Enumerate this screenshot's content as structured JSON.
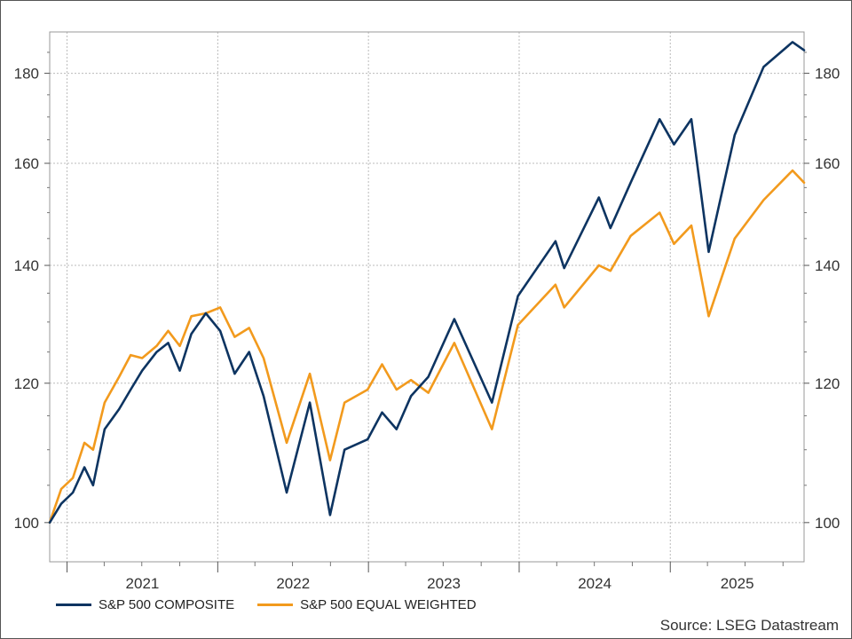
{
  "chart_data": {
    "type": "line",
    "title": "",
    "xlabel": "",
    "ylabel": "",
    "scale": "log",
    "x_range": [
      "2020-11-20",
      "2025-11-21"
    ],
    "ylim": [
      95,
      190
    ],
    "y_ticks": [
      100,
      120,
      140,
      160,
      180
    ],
    "x_tick_labels": [
      "2021",
      "2022",
      "2023",
      "2024",
      "2025"
    ],
    "grid": true,
    "legend_position": "bottom-left",
    "source": "Source: LSEG Datastream",
    "series": [
      {
        "name": "S&P 500 COMPOSITE",
        "color": "#0d3461",
        "points": [
          [
            "2020-11-20",
            100
          ],
          [
            "2020-12-18",
            102.5
          ],
          [
            "2021-01-15",
            104
          ],
          [
            "2021-02-12",
            107.5
          ],
          [
            "2021-03-05",
            105
          ],
          [
            "2021-04-02",
            113
          ],
          [
            "2021-05-07",
            116
          ],
          [
            "2021-06-04",
            119
          ],
          [
            "2021-07-02",
            122
          ],
          [
            "2021-08-06",
            125
          ],
          [
            "2021-09-03",
            126.5
          ],
          [
            "2021-10-01",
            122
          ],
          [
            "2021-10-29",
            128
          ],
          [
            "2021-12-03",
            131.5
          ],
          [
            "2022-01-07",
            128.5
          ],
          [
            "2022-02-11",
            121.5
          ],
          [
            "2022-03-18",
            125
          ],
          [
            "2022-04-22",
            118
          ],
          [
            "2022-06-17",
            104
          ],
          [
            "2022-08-12",
            117
          ],
          [
            "2022-09-30",
            101
          ],
          [
            "2022-11-04",
            110
          ],
          [
            "2022-12-30",
            111.5
          ],
          [
            "2023-02-03",
            115.5
          ],
          [
            "2023-03-10",
            113
          ],
          [
            "2023-04-14",
            118
          ],
          [
            "2023-05-26",
            121
          ],
          [
            "2023-07-28",
            130.5
          ],
          [
            "2023-10-27",
            117
          ],
          [
            "2023-12-29",
            134.5
          ],
          [
            "2024-03-29",
            144.5
          ],
          [
            "2024-04-19",
            139.5
          ],
          [
            "2024-07-12",
            153
          ],
          [
            "2024-08-09",
            147
          ],
          [
            "2024-09-27",
            156
          ],
          [
            "2024-12-06",
            169.5
          ],
          [
            "2025-01-10",
            164
          ],
          [
            "2025-02-21",
            169.5
          ],
          [
            "2025-04-04",
            142.5
          ],
          [
            "2025-06-06",
            166
          ],
          [
            "2025-08-15",
            181.5
          ],
          [
            "2025-10-24",
            187.5
          ],
          [
            "2025-11-21",
            185.5
          ]
        ]
      },
      {
        "name": "S&P 500 EQUAL WEIGHTED",
        "color": "#f29a1d",
        "points": [
          [
            "2020-11-20",
            100
          ],
          [
            "2020-12-18",
            104.5
          ],
          [
            "2021-01-15",
            106
          ],
          [
            "2021-02-12",
            111
          ],
          [
            "2021-03-05",
            110
          ],
          [
            "2021-04-02",
            117
          ],
          [
            "2021-05-07",
            121
          ],
          [
            "2021-06-04",
            124.5
          ],
          [
            "2021-07-02",
            124
          ],
          [
            "2021-08-06",
            126
          ],
          [
            "2021-09-03",
            128.5
          ],
          [
            "2021-10-01",
            126
          ],
          [
            "2021-10-29",
            131
          ],
          [
            "2021-12-03",
            131.5
          ],
          [
            "2022-01-07",
            132.5
          ],
          [
            "2022-02-11",
            127.5
          ],
          [
            "2022-03-18",
            129
          ],
          [
            "2022-04-22",
            124
          ],
          [
            "2022-06-17",
            111
          ],
          [
            "2022-08-12",
            121.5
          ],
          [
            "2022-09-30",
            108.5
          ],
          [
            "2022-11-04",
            117
          ],
          [
            "2022-12-30",
            119
          ],
          [
            "2023-02-03",
            123
          ],
          [
            "2023-03-10",
            119
          ],
          [
            "2023-04-14",
            120.5
          ],
          [
            "2023-05-26",
            118.5
          ],
          [
            "2023-07-28",
            126.5
          ],
          [
            "2023-10-27",
            113
          ],
          [
            "2023-12-29",
            129.5
          ],
          [
            "2024-03-29",
            136.5
          ],
          [
            "2024-04-19",
            132.5
          ],
          [
            "2024-07-12",
            140
          ],
          [
            "2024-08-09",
            139
          ],
          [
            "2024-09-27",
            145.5
          ],
          [
            "2024-12-06",
            150
          ],
          [
            "2025-01-10",
            144
          ],
          [
            "2025-02-21",
            147.5
          ],
          [
            "2025-04-04",
            131
          ],
          [
            "2025-06-06",
            145
          ],
          [
            "2025-08-15",
            152.5
          ],
          [
            "2025-10-24",
            158.5
          ],
          [
            "2025-11-21",
            156
          ]
        ]
      }
    ]
  }
}
